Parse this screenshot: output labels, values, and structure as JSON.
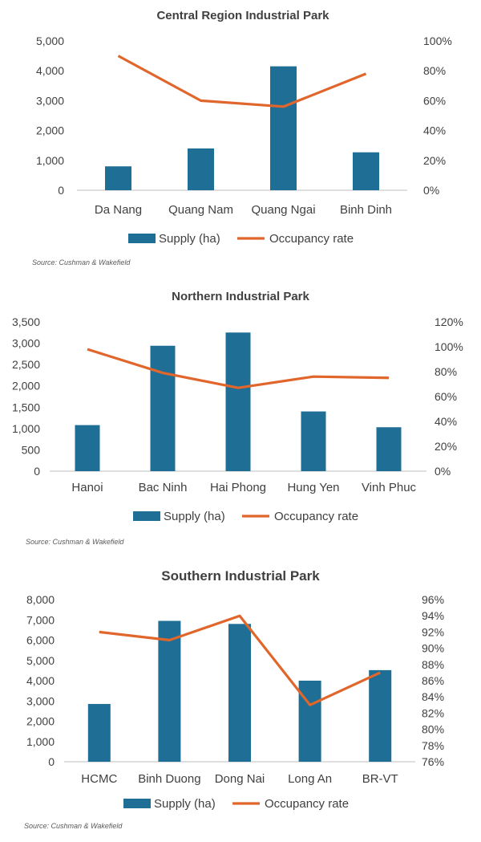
{
  "colors": {
    "bar": "#1F6E96",
    "line": "#E0662B",
    "axis": "#BFBFBF",
    "text": "#404040"
  },
  "chart_data": [
    {
      "type": "bar+line",
      "title": "Central Region Industrial Park",
      "categories": [
        "Da Nang",
        "Quang Nam",
        "Quang Ngai",
        "Binh Dinh"
      ],
      "series": [
        {
          "name": "Supply (ha)",
          "type": "bar",
          "axis": "left",
          "values": [
            800,
            1400,
            4150,
            1270
          ]
        },
        {
          "name": "Occupancy rate",
          "type": "line",
          "axis": "right",
          "values": [
            0.9,
            0.6,
            0.56,
            0.78
          ]
        }
      ],
      "ylim_left": [
        0,
        5000
      ],
      "yticks_left": [
        "0",
        "1,000",
        "2,000",
        "3,000",
        "4,000",
        "5,000"
      ],
      "ylim_right": [
        0,
        1.0
      ],
      "yticks_right": [
        "0%",
        "20%",
        "40%",
        "60%",
        "80%",
        "100%"
      ],
      "legend": "bottom",
      "grid": false,
      "source": "Source: Cushman & Wakefield"
    },
    {
      "type": "bar+line",
      "title": "Northern Industrial Park",
      "categories": [
        "Hanoi",
        "Bac Ninh",
        "Hai Phong",
        "Hung Yen",
        "Vinh Phuc"
      ],
      "series": [
        {
          "name": "Supply (ha)",
          "type": "bar",
          "axis": "left",
          "values": [
            1080,
            2940,
            3250,
            1400,
            1030
          ]
        },
        {
          "name": "Occupancy rate",
          "type": "line",
          "axis": "right",
          "values": [
            0.98,
            0.79,
            0.67,
            0.76,
            0.75
          ]
        }
      ],
      "ylim_left": [
        0,
        3500
      ],
      "yticks_left": [
        "0",
        "500",
        "1,000",
        "1,500",
        "2,000",
        "2,500",
        "3,000",
        "3,500"
      ],
      "ylim_right": [
        0,
        1.2
      ],
      "yticks_right": [
        "0%",
        "20%",
        "40%",
        "60%",
        "80%",
        "100%",
        "120%"
      ],
      "legend": "bottom",
      "grid": false,
      "source": "Source: Cushman & Wakefield"
    },
    {
      "type": "bar+line",
      "title": "Southern Industrial Park",
      "categories": [
        "HCMC",
        "Binh Duong",
        "Dong Nai",
        "Long An",
        "BR-VT"
      ],
      "series": [
        {
          "name": "Supply (ha)",
          "type": "bar",
          "axis": "left",
          "values": [
            2850,
            6950,
            6800,
            4000,
            4520
          ]
        },
        {
          "name": "Occupancy rate",
          "type": "line",
          "axis": "right",
          "values": [
            0.92,
            0.91,
            0.94,
            0.83,
            0.87
          ]
        }
      ],
      "ylim_left": [
        0,
        8000
      ],
      "yticks_left": [
        "0",
        "1,000",
        "2,000",
        "3,000",
        "4,000",
        "5,000",
        "6,000",
        "7,000",
        "8,000"
      ],
      "ylim_right": [
        0.76,
        0.96
      ],
      "yticks_right": [
        "76%",
        "78%",
        "80%",
        "82%",
        "84%",
        "86%",
        "88%",
        "90%",
        "92%",
        "94%",
        "96%"
      ],
      "legend": "bottom",
      "grid": false,
      "source": "Source: Cushman & Wakefield"
    }
  ]
}
